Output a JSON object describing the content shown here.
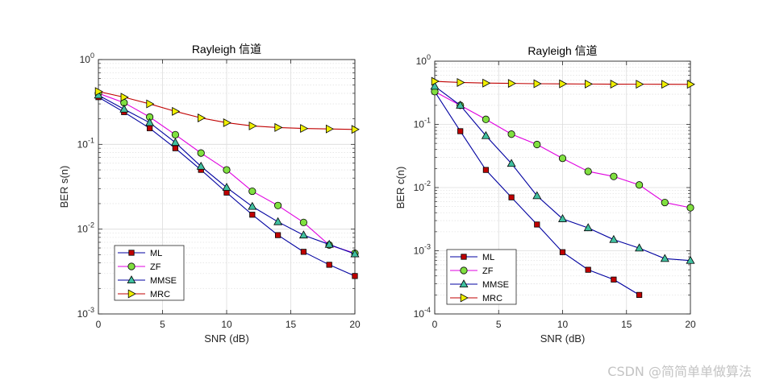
{
  "watermark": "CSDN @简简单单做算法",
  "colors": {
    "ML": {
      "line": "#0000a0",
      "fill": "#c00000"
    },
    "ZF": {
      "line": "#e000e0",
      "fill": "#80e040"
    },
    "MMSE": {
      "line": "#0000a0",
      "fill": "#40c0a0"
    },
    "MRC": {
      "line": "#c00000",
      "fill": "#f0f000"
    }
  },
  "chart_data": [
    {
      "type": "line",
      "title": "Rayleigh 信道",
      "xlabel": "SNR (dB)",
      "ylabel": "BER s(n)",
      "yscale": "log",
      "xlim": [
        0,
        20
      ],
      "ylim": [
        0.001,
        1
      ],
      "xticks": [
        0,
        5,
        10,
        15,
        20
      ],
      "yticks_exponents": [
        0,
        -1,
        -2,
        -3
      ],
      "grid": true,
      "legend_position": "bottom-left",
      "series": [
        {
          "name": "ML",
          "marker": "square",
          "x": [
            0,
            2,
            4,
            6,
            8,
            10,
            12,
            14,
            16,
            18,
            20
          ],
          "values": [
            0.36,
            0.24,
            0.155,
            0.09,
            0.05,
            0.027,
            0.0148,
            0.0085,
            0.0054,
            0.0038,
            0.0028
          ]
        },
        {
          "name": "ZF",
          "marker": "circle",
          "x": [
            0,
            2,
            4,
            6,
            8,
            10,
            12,
            14,
            16,
            18,
            20
          ],
          "values": [
            0.4,
            0.31,
            0.21,
            0.13,
            0.079,
            0.05,
            0.028,
            0.019,
            0.012,
            0.0065,
            0.0052
          ]
        },
        {
          "name": "MMSE",
          "marker": "triangle",
          "x": [
            0,
            2,
            4,
            6,
            8,
            10,
            12,
            14,
            16,
            18,
            20
          ],
          "values": [
            0.38,
            0.26,
            0.18,
            0.105,
            0.055,
            0.031,
            0.0185,
            0.0122,
            0.0085,
            0.0066,
            0.0051
          ]
        },
        {
          "name": "MRC",
          "marker": "triangle-right",
          "x": [
            0,
            2,
            4,
            6,
            8,
            10,
            12,
            14,
            16,
            18,
            20
          ],
          "values": [
            0.42,
            0.36,
            0.3,
            0.245,
            0.205,
            0.18,
            0.165,
            0.158,
            0.154,
            0.152,
            0.15
          ]
        }
      ]
    },
    {
      "type": "line",
      "title": "Rayleigh 信道",
      "xlabel": "SNR (dB)",
      "ylabel": "BER c(n)",
      "yscale": "log",
      "xlim": [
        0,
        20
      ],
      "ylim": [
        0.0001,
        1
      ],
      "xticks": [
        0,
        5,
        10,
        15,
        20
      ],
      "yticks_exponents": [
        0,
        -1,
        -2,
        -3,
        -4
      ],
      "grid": true,
      "legend_position": "bottom-left",
      "series": [
        {
          "name": "ML",
          "marker": "square",
          "x": [
            0,
            2,
            4,
            6,
            8,
            10,
            12,
            14,
            16
          ],
          "values": [
            0.33,
            0.078,
            0.019,
            0.007,
            0.0026,
            0.00095,
            0.0005,
            0.00035,
            0.0002
          ]
        },
        {
          "name": "ZF",
          "marker": "circle",
          "x": [
            0,
            2,
            4,
            6,
            8,
            10,
            12,
            14,
            16,
            18,
            20
          ],
          "values": [
            0.33,
            0.2,
            0.12,
            0.07,
            0.048,
            0.029,
            0.018,
            0.015,
            0.011,
            0.0058,
            0.0048
          ]
        },
        {
          "name": "MMSE",
          "marker": "triangle",
          "x": [
            0,
            2,
            4,
            6,
            8,
            10,
            12,
            14,
            16,
            18,
            20
          ],
          "values": [
            0.4,
            0.2,
            0.066,
            0.024,
            0.0074,
            0.0032,
            0.0023,
            0.0015,
            0.0011,
            0.00075,
            0.0007
          ]
        },
        {
          "name": "MRC",
          "marker": "triangle-right",
          "x": [
            0,
            2,
            4,
            6,
            8,
            10,
            12,
            14,
            16,
            18,
            20
          ],
          "values": [
            0.48,
            0.46,
            0.45,
            0.445,
            0.44,
            0.438,
            0.435,
            0.433,
            0.432,
            0.431,
            0.43
          ]
        }
      ]
    }
  ]
}
